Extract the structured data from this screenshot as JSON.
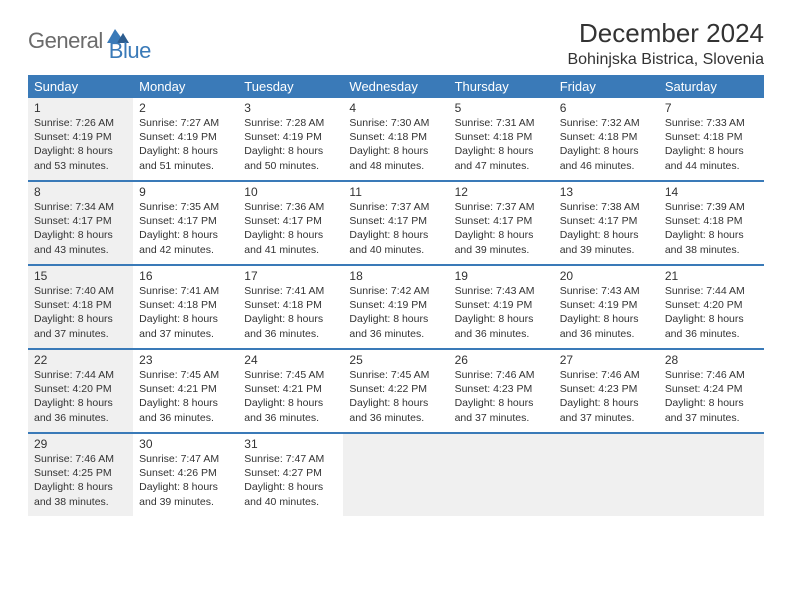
{
  "logo": {
    "text1": "General",
    "text2": "Blue"
  },
  "title": "December 2024",
  "location": "Bohinjska Bistrica, Slovenia",
  "colors": {
    "header_bg": "#3a7ab8",
    "header_text": "#ffffff",
    "shaded_bg": "#f0f0f0",
    "border": "#3a7ab8",
    "logo_gray": "#6b6b6b",
    "logo_blue": "#3a7ab8",
    "body_text": "#333333"
  },
  "day_names": [
    "Sunday",
    "Monday",
    "Tuesday",
    "Wednesday",
    "Thursday",
    "Friday",
    "Saturday"
  ],
  "weeks": [
    [
      {
        "n": "1",
        "sr": "7:26 AM",
        "ss": "4:19 PM",
        "dl": "8 hours and 53 minutes.",
        "shaded": true
      },
      {
        "n": "2",
        "sr": "7:27 AM",
        "ss": "4:19 PM",
        "dl": "8 hours and 51 minutes."
      },
      {
        "n": "3",
        "sr": "7:28 AM",
        "ss": "4:19 PM",
        "dl": "8 hours and 50 minutes."
      },
      {
        "n": "4",
        "sr": "7:30 AM",
        "ss": "4:18 PM",
        "dl": "8 hours and 48 minutes."
      },
      {
        "n": "5",
        "sr": "7:31 AM",
        "ss": "4:18 PM",
        "dl": "8 hours and 47 minutes."
      },
      {
        "n": "6",
        "sr": "7:32 AM",
        "ss": "4:18 PM",
        "dl": "8 hours and 46 minutes."
      },
      {
        "n": "7",
        "sr": "7:33 AM",
        "ss": "4:18 PM",
        "dl": "8 hours and 44 minutes."
      }
    ],
    [
      {
        "n": "8",
        "sr": "7:34 AM",
        "ss": "4:17 PM",
        "dl": "8 hours and 43 minutes.",
        "shaded": true
      },
      {
        "n": "9",
        "sr": "7:35 AM",
        "ss": "4:17 PM",
        "dl": "8 hours and 42 minutes."
      },
      {
        "n": "10",
        "sr": "7:36 AM",
        "ss": "4:17 PM",
        "dl": "8 hours and 41 minutes."
      },
      {
        "n": "11",
        "sr": "7:37 AM",
        "ss": "4:17 PM",
        "dl": "8 hours and 40 minutes."
      },
      {
        "n": "12",
        "sr": "7:37 AM",
        "ss": "4:17 PM",
        "dl": "8 hours and 39 minutes."
      },
      {
        "n": "13",
        "sr": "7:38 AM",
        "ss": "4:17 PM",
        "dl": "8 hours and 39 minutes."
      },
      {
        "n": "14",
        "sr": "7:39 AM",
        "ss": "4:18 PM",
        "dl": "8 hours and 38 minutes."
      }
    ],
    [
      {
        "n": "15",
        "sr": "7:40 AM",
        "ss": "4:18 PM",
        "dl": "8 hours and 37 minutes.",
        "shaded": true
      },
      {
        "n": "16",
        "sr": "7:41 AM",
        "ss": "4:18 PM",
        "dl": "8 hours and 37 minutes."
      },
      {
        "n": "17",
        "sr": "7:41 AM",
        "ss": "4:18 PM",
        "dl": "8 hours and 36 minutes."
      },
      {
        "n": "18",
        "sr": "7:42 AM",
        "ss": "4:19 PM",
        "dl": "8 hours and 36 minutes."
      },
      {
        "n": "19",
        "sr": "7:43 AM",
        "ss": "4:19 PM",
        "dl": "8 hours and 36 minutes."
      },
      {
        "n": "20",
        "sr": "7:43 AM",
        "ss": "4:19 PM",
        "dl": "8 hours and 36 minutes."
      },
      {
        "n": "21",
        "sr": "7:44 AM",
        "ss": "4:20 PM",
        "dl": "8 hours and 36 minutes."
      }
    ],
    [
      {
        "n": "22",
        "sr": "7:44 AM",
        "ss": "4:20 PM",
        "dl": "8 hours and 36 minutes.",
        "shaded": true
      },
      {
        "n": "23",
        "sr": "7:45 AM",
        "ss": "4:21 PM",
        "dl": "8 hours and 36 minutes."
      },
      {
        "n": "24",
        "sr": "7:45 AM",
        "ss": "4:21 PM",
        "dl": "8 hours and 36 minutes."
      },
      {
        "n": "25",
        "sr": "7:45 AM",
        "ss": "4:22 PM",
        "dl": "8 hours and 36 minutes."
      },
      {
        "n": "26",
        "sr": "7:46 AM",
        "ss": "4:23 PM",
        "dl": "8 hours and 37 minutes."
      },
      {
        "n": "27",
        "sr": "7:46 AM",
        "ss": "4:23 PM",
        "dl": "8 hours and 37 minutes."
      },
      {
        "n": "28",
        "sr": "7:46 AM",
        "ss": "4:24 PM",
        "dl": "8 hours and 37 minutes."
      }
    ],
    [
      {
        "n": "29",
        "sr": "7:46 AM",
        "ss": "4:25 PM",
        "dl": "8 hours and 38 minutes.",
        "shaded": true
      },
      {
        "n": "30",
        "sr": "7:47 AM",
        "ss": "4:26 PM",
        "dl": "8 hours and 39 minutes."
      },
      {
        "n": "31",
        "sr": "7:47 AM",
        "ss": "4:27 PM",
        "dl": "8 hours and 40 minutes."
      },
      {
        "empty": true,
        "shaded": true
      },
      {
        "empty": true,
        "shaded": true
      },
      {
        "empty": true,
        "shaded": true
      },
      {
        "empty": true,
        "shaded": true
      }
    ]
  ],
  "labels": {
    "sunrise": "Sunrise: ",
    "sunset": "Sunset: ",
    "daylight": "Daylight: "
  }
}
